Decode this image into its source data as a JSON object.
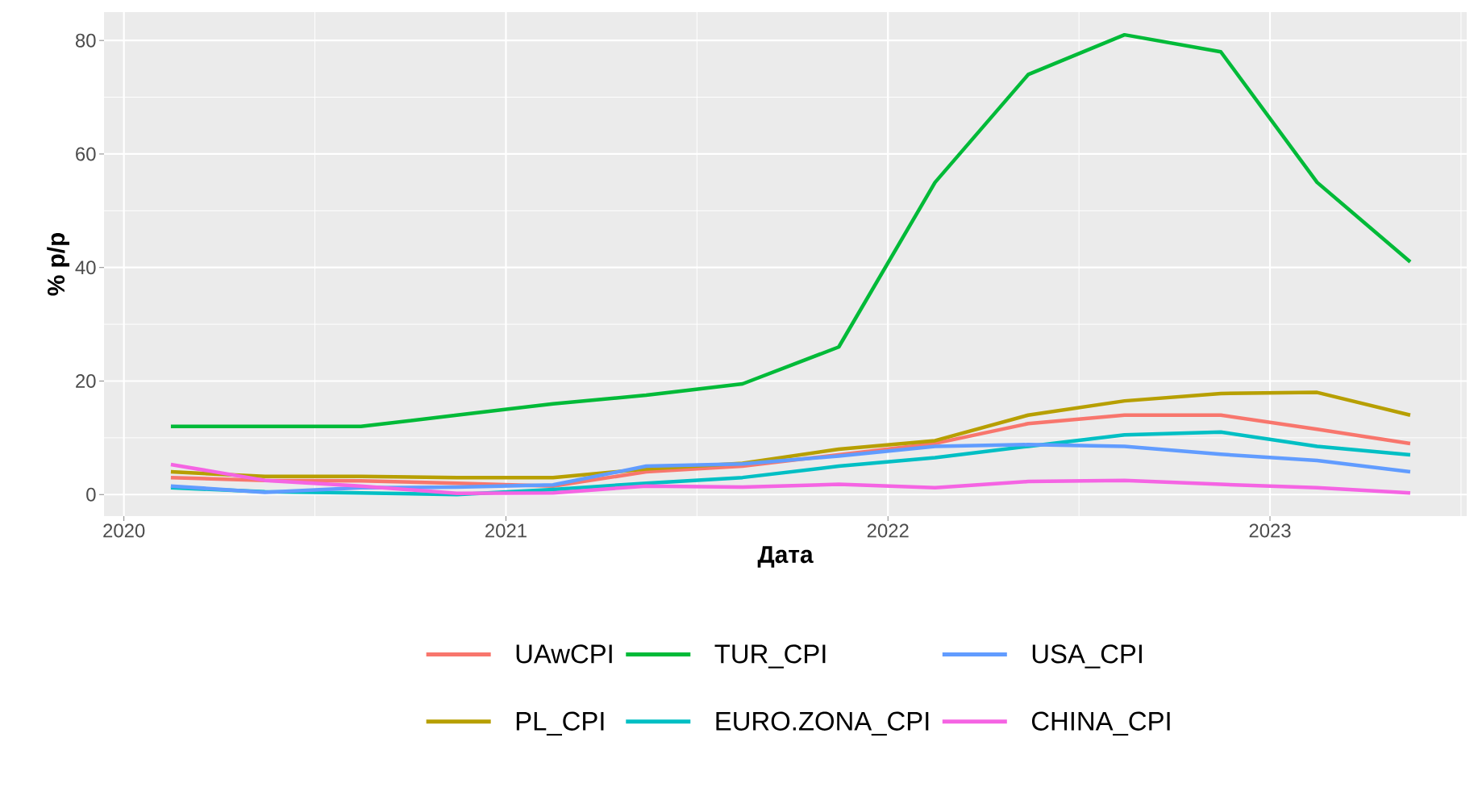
{
  "chart_data": {
    "type": "line",
    "xlabel": "Дата",
    "ylabel": "% р/р",
    "x": [
      "2020-02-15",
      "2020-05-15",
      "2020-08-15",
      "2020-11-15",
      "2021-02-15",
      "2021-05-15",
      "2021-08-15",
      "2021-11-15",
      "2022-02-15",
      "2022-05-15",
      "2022-08-15",
      "2022-11-15",
      "2023-02-15",
      "2023-05-15"
    ],
    "series": [
      {
        "name": "UAwCPI",
        "color": "#f8766d",
        "values": [
          3,
          2.5,
          2.4,
          2.0,
          1.5,
          4,
          5,
          7,
          9,
          12.5,
          14,
          14,
          11.5,
          9
        ]
      },
      {
        "name": "PL_CPI",
        "color": "#b79f00",
        "values": [
          4,
          3.2,
          3.2,
          3.0,
          3.0,
          4.5,
          5.5,
          8,
          9.5,
          14,
          16.5,
          17.8,
          18,
          14
        ]
      },
      {
        "name": "TUR_CPI",
        "color": "#00ba38",
        "values": [
          12,
          12,
          12,
          14,
          16,
          17.5,
          19.5,
          26,
          55,
          74,
          81,
          78,
          55,
          41
        ]
      },
      {
        "name": "EURO.ZONA_CPI",
        "color": "#00bfc4",
        "values": [
          1.2,
          0.5,
          0.3,
          0,
          0.9,
          2,
          3,
          5,
          6.5,
          8.5,
          10.5,
          11,
          8.5,
          7
        ]
      },
      {
        "name": "USA_CPI",
        "color": "#619cff",
        "values": [
          1.5,
          0.4,
          1.2,
          1.3,
          1.7,
          5,
          5.4,
          6.8,
          8.5,
          8.8,
          8.5,
          7.1,
          6,
          4
        ]
      },
      {
        "name": "CHINA_CPI",
        "color": "#f564e3",
        "values": [
          5.3,
          2.5,
          1.5,
          0.2,
          0.3,
          1.5,
          1.3,
          1.8,
          1.2,
          2.3,
          2.5,
          1.8,
          1.2,
          0.3
        ]
      }
    ],
    "xlim": [
      "2019-12-13",
      "2023-07-08"
    ],
    "ylim": [
      -3.8,
      85
    ],
    "xticks": [
      {
        "value": "2020-01-01",
        "label": "2020"
      },
      {
        "value": "2021-01-01",
        "label": "2021"
      },
      {
        "value": "2022-01-01",
        "label": "2022"
      },
      {
        "value": "2023-01-01",
        "label": "2023"
      }
    ],
    "yticks": [
      0,
      20,
      40,
      60,
      80
    ],
    "grid": true,
    "legend": "bottom",
    "line_style": "solid",
    "marker": "none"
  }
}
